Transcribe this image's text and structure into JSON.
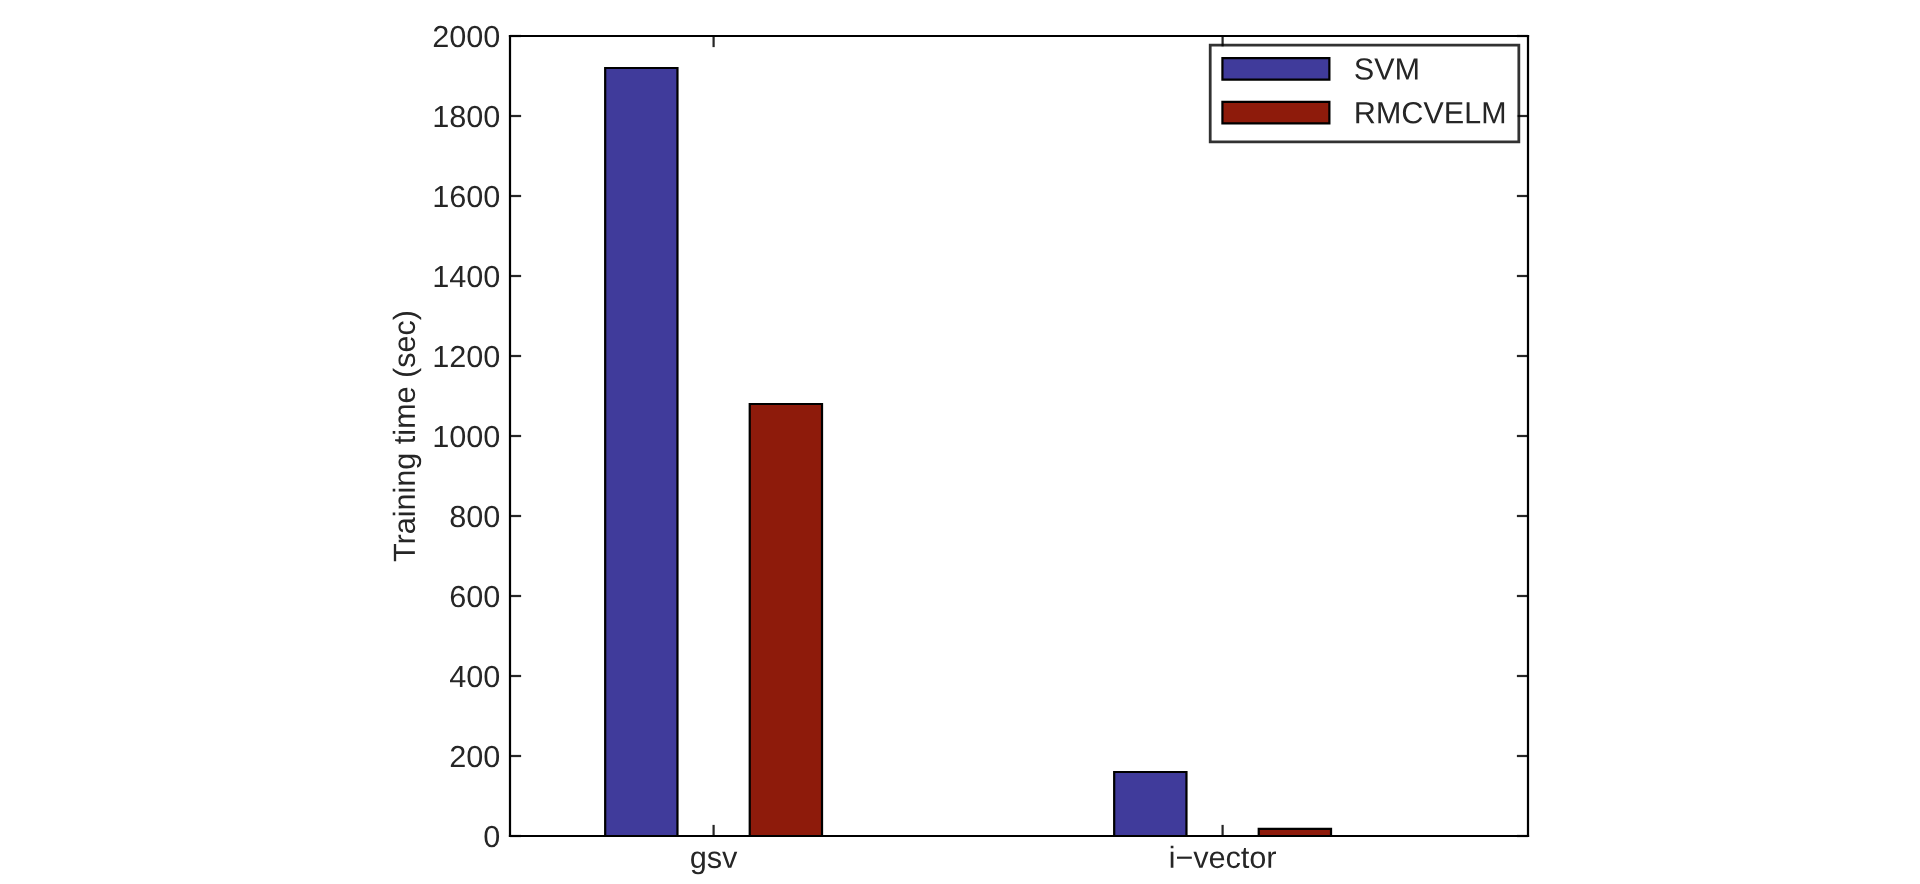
{
  "chart_data": {
    "type": "bar",
    "ylabel": "Training time (sec)",
    "categories": [
      "gsv",
      "i−vector"
    ],
    "series": [
      {
        "name": "SVM",
        "color": "#403b9b",
        "values": [
          1920,
          160
        ]
      },
      {
        "name": "RMCVELM",
        "color": "#8e1b0b",
        "values": [
          1080,
          18
        ]
      }
    ],
    "ylim": [
      0,
      2000
    ],
    "yticks": [
      0,
      200,
      400,
      600,
      800,
      1000,
      1200,
      1400,
      1600,
      1800,
      2000
    ],
    "grid": false,
    "legend": "top right"
  }
}
